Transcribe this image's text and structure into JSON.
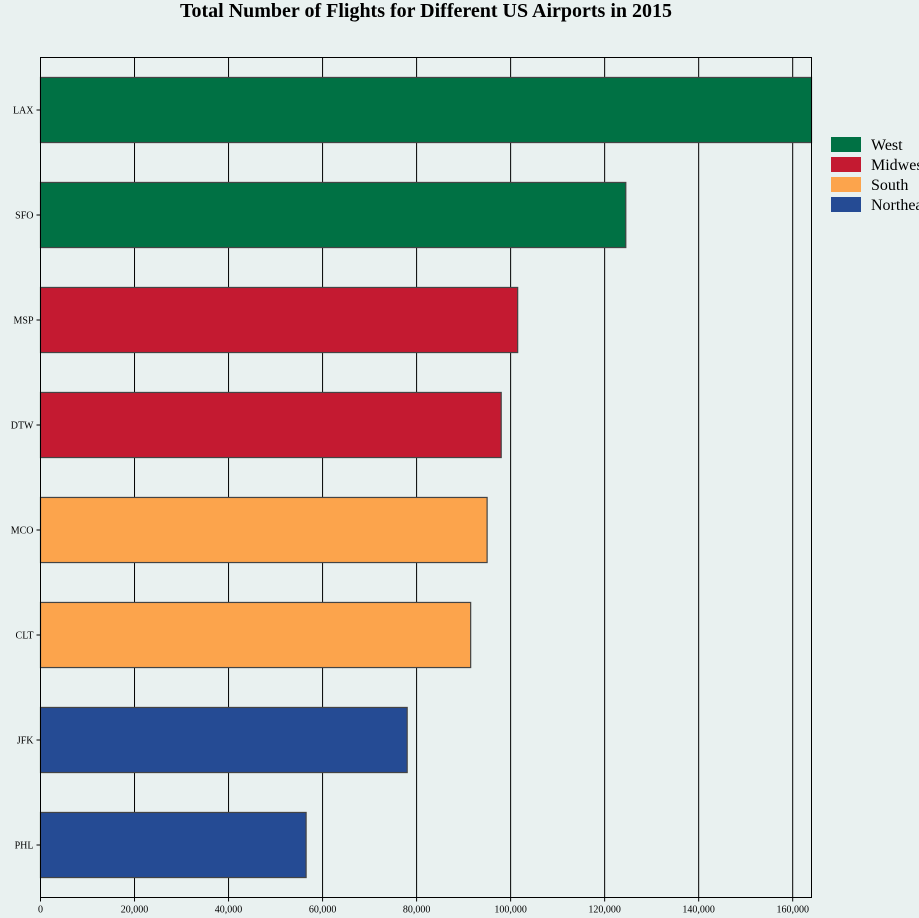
{
  "chart_data": {
    "type": "bar",
    "orientation": "horizontal",
    "title": "Total Number of Flights for Different US Airports in 2015",
    "xlabel": "",
    "ylabel": "",
    "categories": [
      "LAX",
      "SFO",
      "MSP",
      "DTW",
      "MCO",
      "CLT",
      "JFK",
      "PHL"
    ],
    "values": [
      164000,
      124500,
      101500,
      98000,
      95000,
      91500,
      78000,
      56500
    ],
    "regions": [
      "West",
      "West",
      "Midwest",
      "Midwest",
      "South",
      "South",
      "Northeast",
      "Northeast"
    ],
    "xlim": [
      0,
      164000
    ],
    "xticks": [
      0,
      20000,
      40000,
      60000,
      80000,
      100000,
      120000,
      140000,
      160000
    ],
    "xtick_labels": [
      "0",
      "20,000",
      "40,000",
      "60,000",
      "80,000",
      "100,000",
      "120,000",
      "140,000",
      "160,000"
    ],
    "grid": "vertical",
    "legend": {
      "placement": "right",
      "entries": [
        {
          "name": "West",
          "color": "#007144"
        },
        {
          "name": "Midwest",
          "color": "#c41a31"
        },
        {
          "name": "South",
          "color": "#fca44c"
        },
        {
          "name": "Northeast",
          "color": "#254b94"
        }
      ]
    }
  },
  "colors": {
    "background": "#e9f1f0",
    "bar_outline": "#444444",
    "grid": "#000000"
  }
}
